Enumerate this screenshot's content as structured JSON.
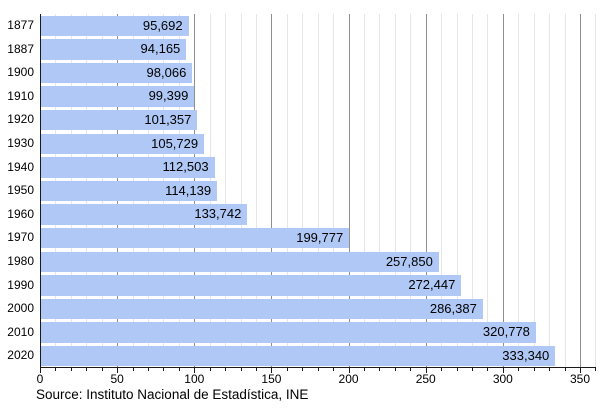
{
  "chart_data": {
    "type": "bar",
    "orientation": "horizontal",
    "title": "",
    "categories": [
      "1877",
      "1887",
      "1900",
      "1910",
      "1920",
      "1930",
      "1940",
      "1950",
      "1960",
      "1970",
      "1980",
      "1990",
      "2000",
      "2010",
      "2020"
    ],
    "values": [
      95692,
      94165,
      98066,
      99399,
      101357,
      105729,
      112503,
      114139,
      133742,
      199777,
      257850,
      272447,
      286387,
      320778,
      333340
    ],
    "value_labels": [
      "95,692",
      "94,165",
      "98,066",
      "99,399",
      "101,357",
      "105,729",
      "112,503",
      "114,139",
      "133,742",
      "199,777",
      "257,850",
      "272,447",
      "286,387",
      "320,778",
      "333,340"
    ],
    "x_axis": {
      "tick_labels": [
        "0",
        "50",
        "100",
        "150",
        "200",
        "250",
        "300",
        "350"
      ],
      "tick_values_thousands": [
        0,
        50,
        100,
        150,
        200,
        250,
        300,
        350
      ],
      "minor_step_thousands": 10,
      "axis_max_thousands": 350,
      "unit": "thousands"
    },
    "grid": {
      "minor": true,
      "major": true
    },
    "legend": null,
    "source": "Source: Instituto Nacional de Estadística, INE",
    "colors": {
      "bar_fill": "#afc8f5",
      "grid_minor": "#e6e6e6",
      "grid_major": "#8f8f8f",
      "axis": "#1a1a1a",
      "text": "#000000"
    }
  }
}
